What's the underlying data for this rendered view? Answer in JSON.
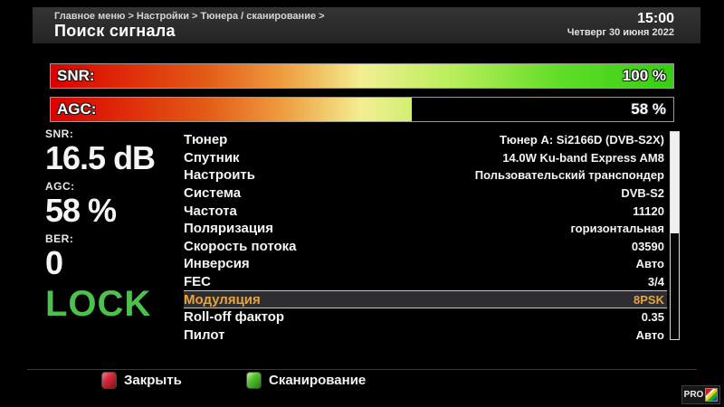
{
  "header": {
    "breadcrumb": "Главное меню > Настройки > Тюнера / сканирование >",
    "title": "Поиск сигнала",
    "time": "15:00",
    "date": "Четверг 30 июня 2022"
  },
  "bars": [
    {
      "label": "SNR:",
      "percent": 100,
      "value_text": "100 %"
    },
    {
      "label": "AGC:",
      "percent": 58,
      "value_text": "58 %"
    }
  ],
  "stats": [
    {
      "label": "SNR:",
      "value": "16.5 dB"
    },
    {
      "label": "AGC:",
      "value": "58 %"
    },
    {
      "label": "BER:",
      "value": "0"
    }
  ],
  "lock": {
    "text": "LOCK",
    "color": "#4cc24c"
  },
  "params": {
    "rows": [
      {
        "label": "Тюнер",
        "value": "Тюнер A: Si2166D (DVB-S2X)",
        "selected": false
      },
      {
        "label": "Спутник",
        "value": "14.0W Ku-band Express AM8",
        "selected": false
      },
      {
        "label": "Настроить",
        "value": "Пользовательский транспондер",
        "selected": false
      },
      {
        "label": "Система",
        "value": "DVB-S2",
        "selected": false
      },
      {
        "label": "Частота",
        "value": "11120",
        "selected": false
      },
      {
        "label": "Поляризация",
        "value": "горизонтальная",
        "selected": false
      },
      {
        "label": "Скорость потока",
        "value": "03590",
        "selected": false
      },
      {
        "label": "Инверсия",
        "value": "Авто",
        "selected": false
      },
      {
        "label": "FEC",
        "value": "3/4",
        "selected": false
      },
      {
        "label": "Модуляция",
        "value": "8PSK",
        "selected": true
      },
      {
        "label": "Roll-off фактор",
        "value": "0.35",
        "selected": false
      },
      {
        "label": "Пилот",
        "value": "Авто",
        "selected": false
      }
    ],
    "selected_text_color": "#e8a33c"
  },
  "footer": {
    "buttons": [
      {
        "key_color": "#cc1122",
        "label": "Закрыть"
      },
      {
        "key_color": "#44bb22",
        "label": "Сканирование"
      }
    ]
  },
  "watermark": {
    "text": "PRO"
  }
}
